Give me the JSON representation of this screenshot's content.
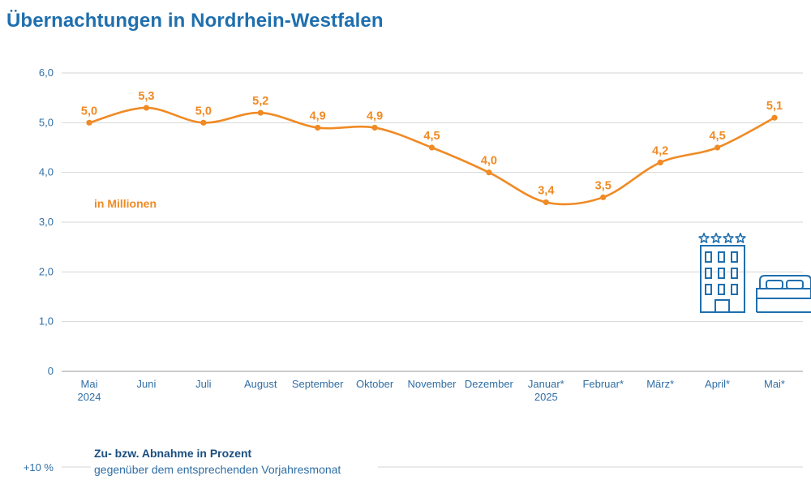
{
  "title": "Übernachtungen in Nordrhein-Westfalen",
  "chart_data": {
    "type": "line",
    "title": "Übernachtungen in Nordrhein-Westfalen",
    "unit_label": "in Millionen",
    "ylim": [
      0,
      6
    ],
    "y_ticks": [
      "0",
      "1,0",
      "2,0",
      "3,0",
      "4,0",
      "5,0",
      "6,0"
    ],
    "grid": true,
    "color": "#f08a24",
    "categories": [
      {
        "line1": "Mai",
        "line2": "2024"
      },
      {
        "line1": "Juni",
        "line2": ""
      },
      {
        "line1": "Juli",
        "line2": ""
      },
      {
        "line1": "August",
        "line2": ""
      },
      {
        "line1": "September",
        "line2": ""
      },
      {
        "line1": "Oktober",
        "line2": ""
      },
      {
        "line1": "November",
        "line2": ""
      },
      {
        "line1": "Dezember",
        "line2": ""
      },
      {
        "line1": "Januar*",
        "line2": "2025"
      },
      {
        "line1": "Februar*",
        "line2": ""
      },
      {
        "line1": "März*",
        "line2": ""
      },
      {
        "line1": "April*",
        "line2": ""
      },
      {
        "line1": "Mai*",
        "line2": ""
      }
    ],
    "values": [
      5.0,
      5.3,
      5.0,
      5.2,
      4.9,
      4.9,
      4.5,
      4.0,
      3.4,
      3.5,
      4.2,
      4.5,
      5.1
    ],
    "value_labels": [
      "5,0",
      "5,3",
      "5,0",
      "5,2",
      "4,9",
      "4,9",
      "4,5",
      "4,0",
      "3,4",
      "3,5",
      "4,2",
      "4,5",
      "5,1"
    ]
  },
  "secondary_chart": {
    "title": "Zu- bzw. Abnahme in Prozent",
    "subtitle": "gegenüber dem entsprechenden Vorjahresmonat",
    "first_tick": "+10 %"
  },
  "icons": [
    "hotel-building-icon",
    "four-stars-icon",
    "bed-icon"
  ],
  "colors": {
    "title": "#1f6fae",
    "line": "#f08a24",
    "axis_text": "#2f6ea5",
    "icon": "#1f6fae"
  }
}
